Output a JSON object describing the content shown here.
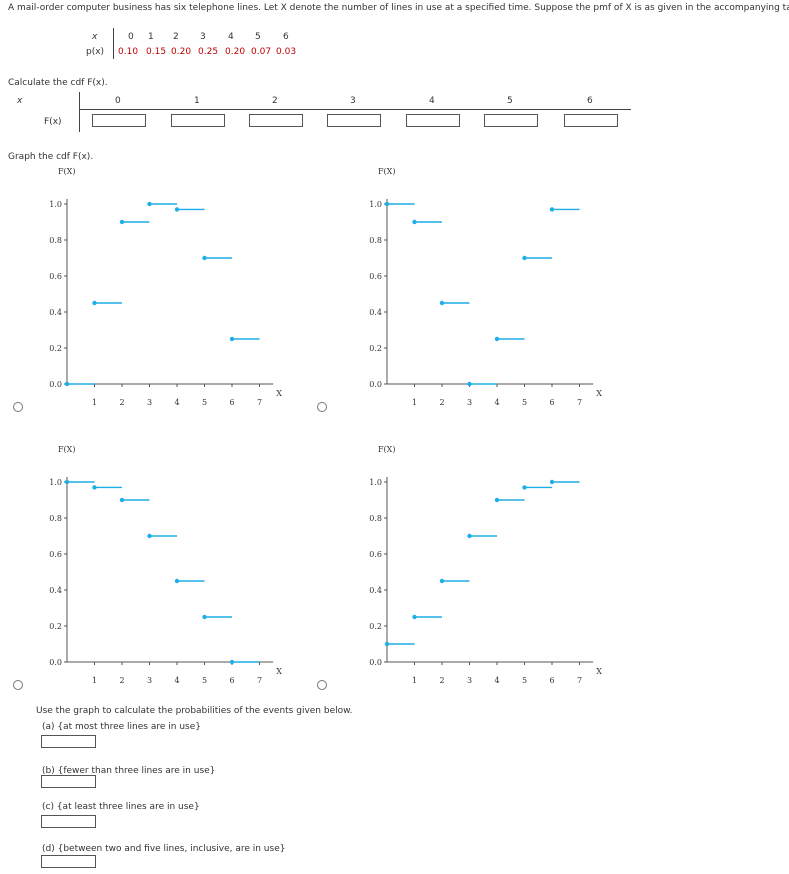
{
  "intro": "A mail-order computer business has six telephone lines. Let X denote the number of lines in use at a specified time. Suppose the pmf of X is as given in the accompanying table.",
  "pmf": {
    "x_label": "x",
    "p_label": "p(x)",
    "x_values": [
      "0",
      "1",
      "2",
      "3",
      "4",
      "5",
      "6"
    ],
    "p_values": [
      "0.10",
      "0.15",
      "0.20",
      "0.25",
      "0.20",
      "0.07",
      "0.03"
    ]
  },
  "cdf_calc": {
    "prompt": "Calculate the cdf F(x).",
    "x_label": "x",
    "f_label": "F(x)",
    "x_values": [
      "0",
      "1",
      "2",
      "3",
      "4",
      "5",
      "6"
    ]
  },
  "graph_prompt": "Graph the cdf F(x).",
  "chart_data": [
    {
      "type": "scatter",
      "ylabel": "F(X)",
      "xlabel": "X",
      "y_ticks": [
        "0.0",
        "0.2",
        "0.4",
        "0.6",
        "0.8",
        "1.0"
      ],
      "x_ticks": [
        "1",
        "2",
        "3",
        "4",
        "5",
        "6",
        "7"
      ],
      "ylim": [
        0,
        1
      ],
      "xlim": [
        0,
        7.5
      ],
      "steps": [
        [
          0,
          0.0
        ],
        [
          1,
          0.45
        ],
        [
          2,
          0.9
        ],
        [
          3,
          1.0
        ],
        [
          4,
          0.97
        ],
        [
          5,
          0.7
        ],
        [
          6,
          0.25
        ]
      ]
    },
    {
      "type": "scatter",
      "ylabel": "F(X)",
      "xlabel": "X",
      "y_ticks": [
        "0.0",
        "0.2",
        "0.4",
        "0.6",
        "0.8",
        "1.0"
      ],
      "x_ticks": [
        "1",
        "2",
        "3",
        "4",
        "5",
        "6",
        "7"
      ],
      "ylim": [
        0,
        1
      ],
      "xlim": [
        0,
        7.5
      ],
      "steps": [
        [
          0,
          1.0
        ],
        [
          1,
          0.9
        ],
        [
          2,
          0.45
        ],
        [
          3,
          0.0
        ],
        [
          4,
          0.25
        ],
        [
          5,
          0.7
        ],
        [
          6,
          0.97
        ]
      ]
    },
    {
      "type": "scatter",
      "ylabel": "F(X)",
      "xlabel": "X",
      "y_ticks": [
        "0.0",
        "0.2",
        "0.4",
        "0.6",
        "0.8",
        "1.0"
      ],
      "x_ticks": [
        "1",
        "2",
        "3",
        "4",
        "5",
        "6",
        "7"
      ],
      "ylim": [
        0,
        1
      ],
      "xlim": [
        0,
        7.5
      ],
      "steps": [
        [
          0,
          1.0
        ],
        [
          1,
          0.97
        ],
        [
          2,
          0.9
        ],
        [
          3,
          0.7
        ],
        [
          4,
          0.45
        ],
        [
          5,
          0.25
        ],
        [
          6,
          0.0
        ]
      ]
    },
    {
      "type": "scatter",
      "ylabel": "F(X)",
      "xlabel": "X",
      "y_ticks": [
        "0.0",
        "0.2",
        "0.4",
        "0.6",
        "0.8",
        "1.0"
      ],
      "x_ticks": [
        "1",
        "2",
        "3",
        "4",
        "5",
        "6",
        "7"
      ],
      "ylim": [
        0,
        1
      ],
      "xlim": [
        0,
        7.5
      ],
      "steps": [
        [
          0,
          0.1
        ],
        [
          1,
          0.25
        ],
        [
          2,
          0.45
        ],
        [
          3,
          0.7
        ],
        [
          4,
          0.9
        ],
        [
          5,
          0.97
        ],
        [
          6,
          1.0
        ]
      ]
    }
  ],
  "questions": {
    "prompt": "Use the graph to calculate the probabilities of the events given below.",
    "items": [
      "(a) {at most three lines are in use}",
      "(b) {fewer than three lines are in use}",
      "(c) {at least three lines are in use}",
      "(d) {between two and five lines, inclusive, are in use}"
    ]
  },
  "colors": {
    "step": "#1eaee6",
    "red": "#c00000"
  }
}
